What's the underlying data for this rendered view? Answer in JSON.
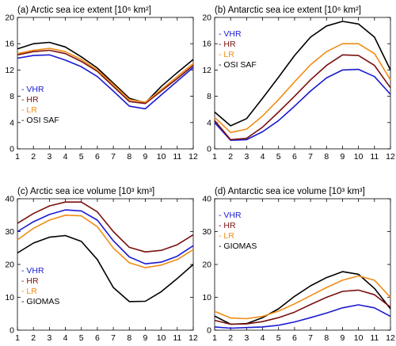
{
  "colors": {
    "VHR": "#1a1ad2",
    "HR": "#7a1010",
    "LR": "#f08c14",
    "OBS": "#000000"
  },
  "chart_data": [
    {
      "type": "line",
      "title": "(a) Arctic sea ice extent [10⁶ km²]",
      "xlabel": "",
      "ylabel": "",
      "x": [
        1,
        2,
        3,
        4,
        5,
        6,
        7,
        8,
        9,
        10,
        11,
        12
      ],
      "xlim": [
        1,
        12
      ],
      "ylim": [
        0,
        20
      ],
      "yticks": [
        0,
        4,
        8,
        12,
        16,
        20
      ],
      "legend_position": "bottom-left",
      "series": [
        {
          "name": "VHR",
          "color_key": "VHR",
          "values": [
            13.8,
            14.2,
            14.3,
            13.5,
            12.5,
            11.0,
            8.8,
            6.5,
            6.1,
            8.2,
            10.3,
            12.4
          ]
        },
        {
          "name": "HR",
          "color_key": "HR",
          "values": [
            14.3,
            14.8,
            15.0,
            14.5,
            13.3,
            11.8,
            9.5,
            7.2,
            6.9,
            8.8,
            10.7,
            12.7
          ]
        },
        {
          "name": "LR",
          "color_key": "LR",
          "values": [
            14.5,
            15.0,
            15.3,
            14.8,
            13.6,
            12.0,
            9.8,
            7.5,
            7.1,
            9.0,
            11.0,
            13.0
          ]
        },
        {
          "name": "OSI SAF",
          "color_key": "OBS",
          "values": [
            15.2,
            16.0,
            16.2,
            15.5,
            14.0,
            12.3,
            10.0,
            7.7,
            7.0,
            9.5,
            11.6,
            13.6
          ]
        }
      ]
    },
    {
      "type": "line",
      "title": "(b) Antarctic sea ice extent [10⁶ km²]",
      "xlabel": "",
      "ylabel": "",
      "x": [
        1,
        2,
        3,
        4,
        5,
        6,
        7,
        8,
        9,
        10,
        11,
        12
      ],
      "xlim": [
        1,
        12
      ],
      "ylim": [
        0,
        20
      ],
      "yticks": [
        0,
        4,
        8,
        12,
        16,
        20
      ],
      "legend_position": "top-left",
      "series": [
        {
          "name": "VHR",
          "color_key": "VHR",
          "values": [
            4.0,
            1.3,
            1.4,
            2.6,
            4.3,
            6.5,
            8.8,
            10.8,
            12.0,
            12.1,
            11.0,
            8.3
          ]
        },
        {
          "name": "HR",
          "color_key": "HR",
          "values": [
            4.3,
            1.4,
            1.6,
            3.3,
            5.6,
            8.0,
            10.5,
            12.7,
            14.3,
            14.2,
            12.7,
            9.3
          ]
        },
        {
          "name": "LR",
          "color_key": "LR",
          "values": [
            4.8,
            2.5,
            3.0,
            5.0,
            7.5,
            10.2,
            12.8,
            14.8,
            16.0,
            16.0,
            14.5,
            10.5
          ]
        },
        {
          "name": "OSI SAF",
          "color_key": "OBS",
          "values": [
            5.6,
            3.5,
            4.6,
            7.7,
            10.9,
            14.2,
            17.0,
            18.7,
            19.4,
            19.0,
            17.0,
            12.0
          ]
        }
      ]
    },
    {
      "type": "line",
      "title": "(c) Arctic sea ice volume [10³ km³]",
      "xlabel": "",
      "ylabel": "",
      "x": [
        1,
        2,
        3,
        4,
        5,
        6,
        7,
        8,
        9,
        10,
        11,
        12
      ],
      "xlim": [
        1,
        12
      ],
      "ylim": [
        0,
        40
      ],
      "yticks": [
        0,
        10,
        20,
        30,
        40
      ],
      "legend_position": "bottom-left",
      "series": [
        {
          "name": "VHR",
          "color_key": "VHR",
          "values": [
            30.0,
            33.0,
            35.2,
            36.6,
            36.3,
            33.5,
            27.2,
            22.3,
            20.2,
            20.7,
            22.5,
            25.7
          ]
        },
        {
          "name": "HR",
          "color_key": "HR",
          "values": [
            32.5,
            35.5,
            37.8,
            39.0,
            39.0,
            36.0,
            30.0,
            25.2,
            23.8,
            24.3,
            26.0,
            29.0
          ]
        },
        {
          "name": "LR",
          "color_key": "LR",
          "values": [
            27.5,
            31.0,
            33.5,
            35.0,
            34.8,
            31.5,
            25.0,
            20.5,
            19.0,
            19.8,
            21.5,
            24.5
          ]
        },
        {
          "name": "GIOMAS",
          "color_key": "OBS",
          "values": [
            23.5,
            26.5,
            28.3,
            28.8,
            27.0,
            21.5,
            13.0,
            8.7,
            8.8,
            11.7,
            15.7,
            20.0
          ]
        }
      ]
    },
    {
      "type": "line",
      "title": "(d) Antarctic sea ice volume [10³ km³]",
      "xlabel": "",
      "ylabel": "",
      "x": [
        1,
        2,
        3,
        4,
        5,
        6,
        7,
        8,
        9,
        10,
        11,
        12
      ],
      "xlim": [
        1,
        12
      ],
      "ylim": [
        0,
        40
      ],
      "yticks": [
        0,
        10,
        20,
        30,
        40
      ],
      "legend_position": "top-left",
      "series": [
        {
          "name": "VHR",
          "color_key": "VHR",
          "values": [
            1.0,
            0.6,
            0.8,
            1.0,
            1.5,
            2.5,
            3.8,
            5.2,
            6.8,
            7.7,
            6.8,
            4.2
          ]
        },
        {
          "name": "HR",
          "color_key": "HR",
          "values": [
            3.0,
            1.8,
            1.9,
            2.6,
            3.8,
            5.5,
            7.8,
            10.0,
            11.8,
            12.2,
            10.8,
            7.0
          ]
        },
        {
          "name": "LR",
          "color_key": "LR",
          "values": [
            5.7,
            3.7,
            3.5,
            4.2,
            5.8,
            8.0,
            10.5,
            13.0,
            15.2,
            16.5,
            15.2,
            10.0
          ]
        },
        {
          "name": "GIOMAS",
          "color_key": "OBS",
          "values": [
            4.3,
            1.8,
            2.0,
            3.8,
            6.5,
            10.3,
            13.5,
            16.0,
            17.8,
            17.0,
            12.7,
            6.5
          ]
        }
      ]
    }
  ]
}
